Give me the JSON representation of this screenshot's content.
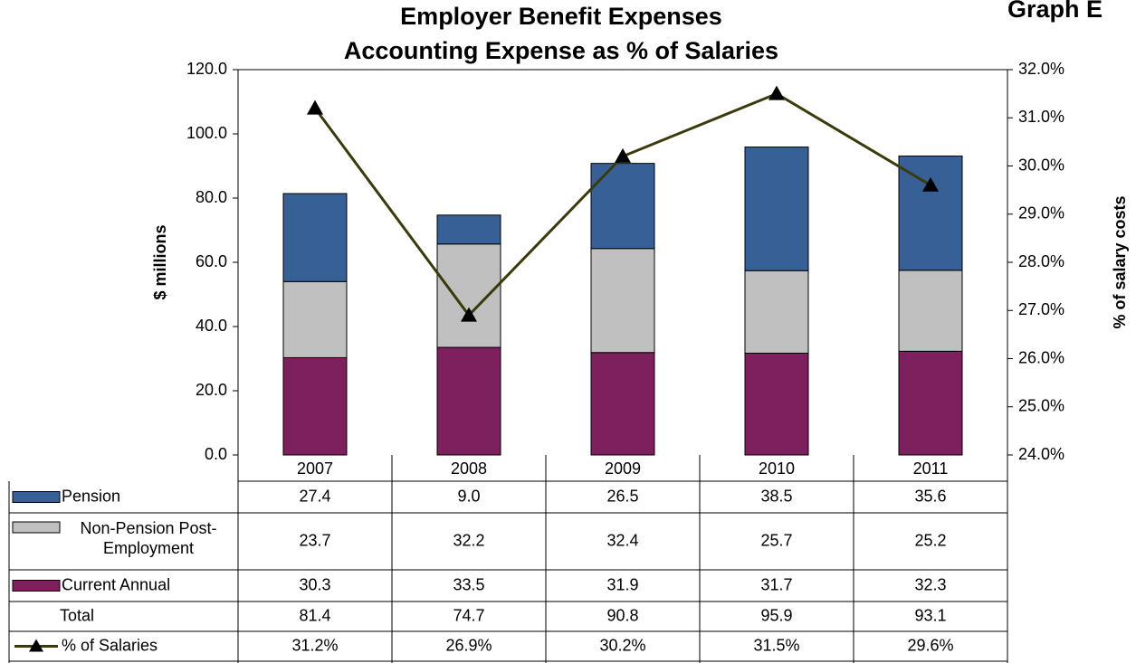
{
  "chart_data": {
    "type": "bar",
    "stacked": true,
    "title": [
      "Employer Benefit Expenses",
      "Accounting Expense as % of Salaries"
    ],
    "corner_label": "Graph E",
    "ylabel": "$ millions",
    "y2label": "% of salary costs",
    "categories": [
      "2007",
      "2008",
      "2009",
      "2010",
      "2011"
    ],
    "ylim": [
      0,
      120
    ],
    "yticks": [
      {
        "value": 0,
        "label": "0.0"
      },
      {
        "value": 20,
        "label": "20.0"
      },
      {
        "value": 40,
        "label": "40.0"
      },
      {
        "value": 60,
        "label": "60.0"
      },
      {
        "value": 80,
        "label": "80.0"
      },
      {
        "value": 100,
        "label": "100.0"
      },
      {
        "value": 120,
        "label": "120.0"
      }
    ],
    "y2lim": [
      24,
      32
    ],
    "y2ticks": [
      {
        "value": 24,
        "label": "24.0%"
      },
      {
        "value": 25,
        "label": "25.0%"
      },
      {
        "value": 26,
        "label": "26.0%"
      },
      {
        "value": 27,
        "label": "27.0%"
      },
      {
        "value": 28,
        "label": "28.0%"
      },
      {
        "value": 29,
        "label": "29.0%"
      },
      {
        "value": 30,
        "label": "30.0%"
      },
      {
        "value": 31,
        "label": "31.0%"
      },
      {
        "value": 32,
        "label": "32.0%"
      }
    ],
    "series": [
      {
        "name": "Pension",
        "color": "#376196",
        "values": [
          27.4,
          9.0,
          26.5,
          38.5,
          35.6
        ],
        "value_labels": [
          "27.4",
          "9.0",
          "26.5",
          "38.5",
          "35.6"
        ]
      },
      {
        "name": "Non-Pension Post-Employment",
        "color": "#c0c0c0",
        "values": [
          23.7,
          32.2,
          32.4,
          25.7,
          25.2
        ]
      },
      {
        "name": "Current Annual",
        "color": "#7e1f5e",
        "values": [
          30.3,
          33.5,
          31.9,
          31.7,
          32.3
        ]
      },
      {
        "name": "% of Salaries",
        "type": "line",
        "axis": "y2",
        "color": "#3a3a0c",
        "values": [
          31.2,
          26.9,
          30.2,
          31.5,
          29.6
        ],
        "value_labels": [
          "31.2%",
          "26.9%",
          "30.2%",
          "31.5%",
          "29.6%"
        ]
      }
    ],
    "totals": {
      "name": "Total",
      "values": [
        81.4,
        74.7,
        90.8,
        95.9,
        93.1
      ]
    }
  }
}
